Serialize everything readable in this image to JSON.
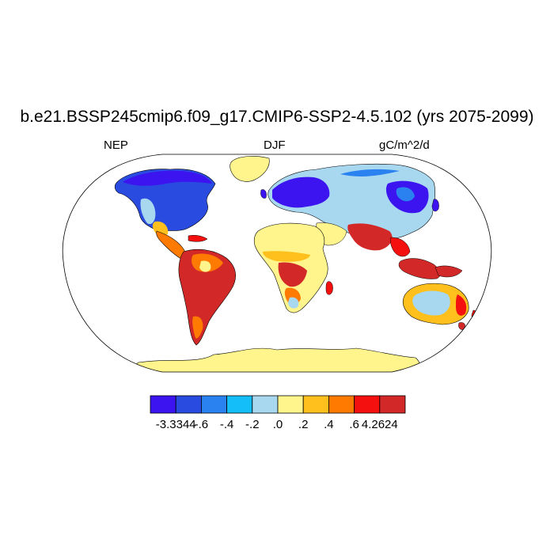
{
  "title": "b.e21.BSSP245cmip6.f09_g17.CMIP6-SSP2-4.5.102 (yrs 2075-2099)",
  "left_label": "NEP",
  "center_label": "DJF",
  "right_label": "gC/m^2/d",
  "colorbar": {
    "colors": [
      "#3c14f0",
      "#2a4be0",
      "#2a82f0",
      "#14bef8",
      "#a8d8f0",
      "#fff58c",
      "#ffc01e",
      "#ff7a00",
      "#f51010",
      "#d22828"
    ],
    "labels": [
      "-3.3344",
      "-.6",
      "-.4",
      "-.2",
      ".0",
      ".2",
      ".4",
      ".6",
      "4.2624"
    ]
  },
  "colors": {
    "ocean": "#ffffff",
    "outline": "#000000"
  }
}
